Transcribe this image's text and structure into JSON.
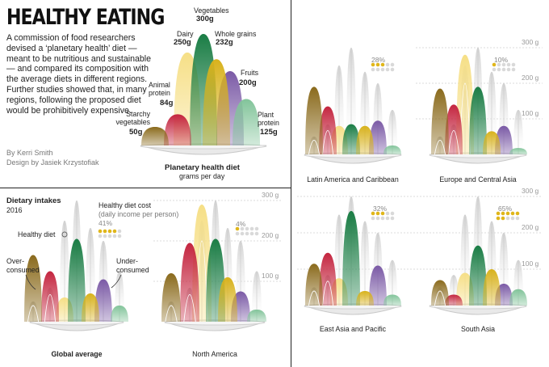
{
  "headline": "HEALTHY EATING",
  "intro": "A commission of food researchers devised a ‘planetary health’ diet — meant to be nutritious and sustainable — and compared its composition with the average diets in different regions. Further studies showed that, in many regions, following the proposed diet would be prohibitively expensive.",
  "credits": {
    "author": "By Kerri Smith",
    "design": "Design by Jasiek Krzystofiak"
  },
  "reference": {
    "title": "Planetary health diet",
    "subtitle": "grams per day",
    "labels": {
      "starchy": {
        "name": "Starchy vegetables",
        "value": "50g"
      },
      "animal": {
        "name": "Animal protein",
        "value": "84g"
      },
      "dairy": {
        "name": "Dairy",
        "value": "250g"
      },
      "vegetables": {
        "name": "Vegetables",
        "value": "300g"
      },
      "grains": {
        "name": "Whole grains",
        "value": "232g"
      },
      "fruits": {
        "name": "Fruits",
        "value": "200g"
      },
      "plant": {
        "name": "Plant protein",
        "value": "125g"
      }
    }
  },
  "legend": {
    "title": "Dietary intakes",
    "year": "2016",
    "healthy_diet": "Healthy diet",
    "over": "Over-consumed",
    "under": "Under-consumed",
    "cost_title": "Healthy diet cost",
    "cost_sub": "(daily income per person)"
  },
  "axis_ticks": [
    "300 g",
    "200 g",
    "100 g"
  ],
  "colors": {
    "starchy": "#8a6a1c",
    "animal": "#c4253f",
    "dairy": "#f6df86",
    "vegetables": "#1a7d45",
    "grains": "#d8b21c",
    "fruits": "#7b5aa6",
    "plant": "#82c49a",
    "dot_on": "#e0b61a",
    "dot_off": "#d9d9d9"
  },
  "chart_data": {
    "type": "area",
    "unit": "grams per day",
    "ylim": [
      0,
      300
    ],
    "categories": [
      "Starchy vegetables",
      "Animal protein",
      "Dairy",
      "Vegetables",
      "Whole grains",
      "Fruits",
      "Plant protein"
    ],
    "planetary_health_diet": [
      50,
      84,
      250,
      300,
      232,
      200,
      125
    ],
    "regions": [
      {
        "name": "Global average",
        "intake": [
          165,
          125,
          60,
          205,
          70,
          105,
          40
        ],
        "cost_pct": 41
      },
      {
        "name": "North America",
        "intake": [
          120,
          195,
          290,
          205,
          110,
          75,
          30
        ],
        "cost_pct": 4
      },
      {
        "name": "Latin America and Caribbean",
        "intake": [
          190,
          135,
          80,
          85,
          80,
          95,
          25
        ],
        "cost_pct": 28
      },
      {
        "name": "Europe and Central Asia",
        "intake": [
          185,
          140,
          280,
          190,
          65,
          80,
          18
        ],
        "cost_pct": 10
      },
      {
        "name": "East Asia and Pacific",
        "intake": [
          115,
          145,
          75,
          260,
          40,
          110,
          30
        ],
        "cost_pct": 32
      },
      {
        "name": "South Asia",
        "intake": [
          70,
          30,
          90,
          165,
          100,
          60,
          45
        ],
        "cost_pct": 65
      }
    ]
  }
}
